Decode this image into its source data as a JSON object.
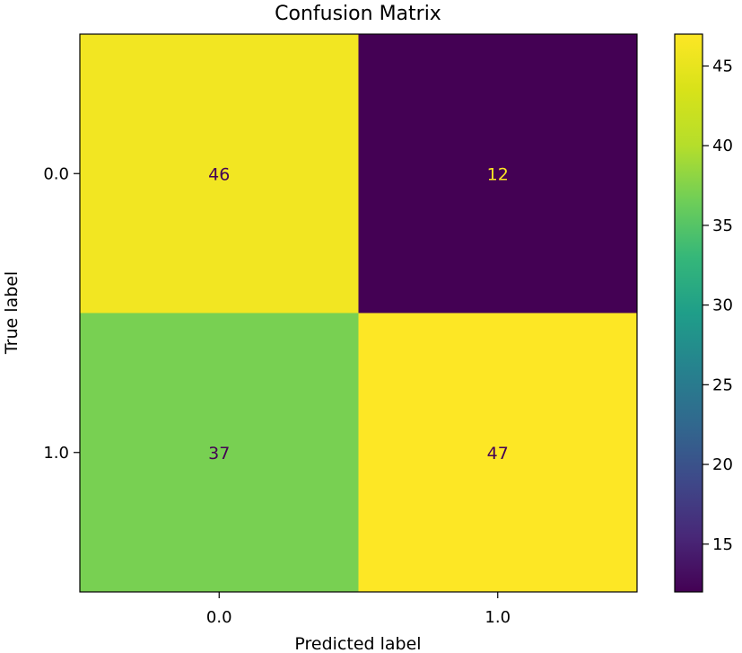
{
  "chart_data": {
    "type": "heatmap",
    "title": "Confusion Matrix",
    "xlabel": "Predicted label",
    "ylabel": "True label",
    "x_categories": [
      "0.0",
      "1.0"
    ],
    "y_categories": [
      "0.0",
      "1.0"
    ],
    "matrix": [
      [
        46,
        12
      ],
      [
        37,
        47
      ]
    ],
    "colormap": "viridis",
    "colorbar": {
      "min": 12,
      "max": 47,
      "ticks": [
        15,
        20,
        25,
        30,
        35,
        40,
        45
      ]
    },
    "grid": false,
    "colors": {
      "text_on_dark": "#fde725",
      "text_on_light": "#440154"
    }
  }
}
